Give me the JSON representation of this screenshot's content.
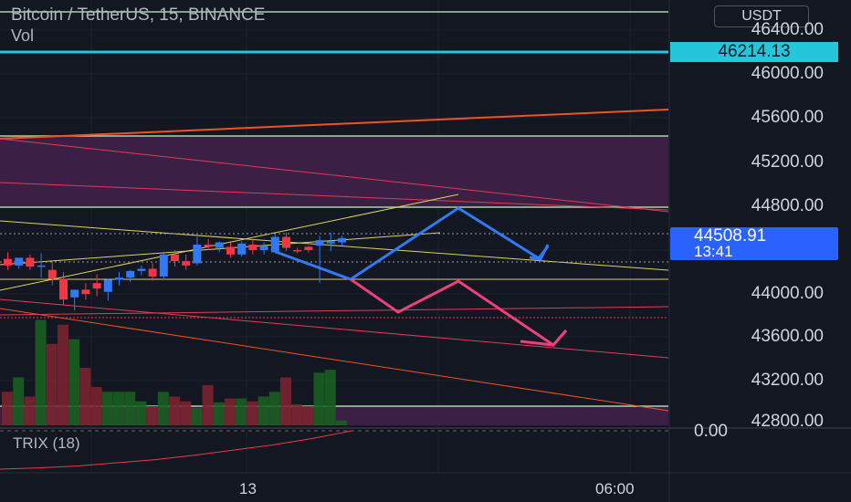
{
  "header": {
    "title": "Bitcoin / TetherUS, 15, BINANCE",
    "volume_label": "Vol"
  },
  "price_axis": {
    "currency": "USDT",
    "labels": [
      "46400.00",
      "46000.00",
      "45600.00",
      "45200.00",
      "44800.00",
      "44000.00",
      "43600.00",
      "43200.00",
      "42800.00"
    ],
    "highlighted_level": "46214.13",
    "last_price": "44508.91",
    "countdown": "13:41"
  },
  "indicator": {
    "label": "TRIX (18)",
    "zero_label": "0.00"
  },
  "time_axis": {
    "labels": [
      "13",
      "06:00"
    ]
  },
  "colors": {
    "background": "#131722",
    "up": "#3179f5",
    "down": "#f23645",
    "highlight_level": "#26c6da",
    "zone": "#3b1f45",
    "support_line": "#a5d6a7"
  },
  "chart_data": {
    "type": "candlestick",
    "symbol": "BTC/USDT",
    "interval": "15",
    "exchange": "BINANCE",
    "ylim": [
      42800,
      46400
    ],
    "candles": [
      {
        "o": 44320,
        "h": 44380,
        "c": 44260,
        "l": 44220
      },
      {
        "o": 44260,
        "h": 44320,
        "c": 44330,
        "l": 44230
      },
      {
        "o": 44330,
        "h": 44360,
        "c": 44250,
        "l": 44220
      },
      {
        "o": 44250,
        "h": 44370,
        "c": 44260,
        "l": 44150
      },
      {
        "o": 44220,
        "h": 44290,
        "c": 44140,
        "l": 44080
      },
      {
        "o": 44140,
        "h": 44200,
        "c": 43950,
        "l": 43900
      },
      {
        "o": 43970,
        "h": 44020,
        "c": 44040,
        "l": 43850
      },
      {
        "o": 44040,
        "h": 44100,
        "c": 44000,
        "l": 43950
      },
      {
        "o": 44100,
        "h": 44180,
        "c": 44050,
        "l": 43980
      },
      {
        "o": 44020,
        "h": 44140,
        "c": 44130,
        "l": 43940
      },
      {
        "o": 44130,
        "h": 44200,
        "c": 44150,
        "l": 44080
      },
      {
        "o": 44150,
        "h": 44220,
        "c": 44210,
        "l": 44110
      },
      {
        "o": 44210,
        "h": 44260,
        "c": 44230,
        "l": 44170
      },
      {
        "o": 44230,
        "h": 44280,
        "c": 44160,
        "l": 44120
      },
      {
        "o": 44160,
        "h": 44370,
        "c": 44360,
        "l": 44130
      },
      {
        "o": 44360,
        "h": 44400,
        "c": 44300,
        "l": 44250
      },
      {
        "o": 44300,
        "h": 44360,
        "c": 44260,
        "l": 44220
      },
      {
        "o": 44280,
        "h": 44520,
        "c": 44450,
        "l": 44260
      },
      {
        "o": 44450,
        "h": 44500,
        "c": 44430,
        "l": 44400
      },
      {
        "o": 44420,
        "h": 44480,
        "c": 44470,
        "l": 44380
      },
      {
        "o": 44430,
        "h": 44470,
        "c": 44360,
        "l": 44330
      },
      {
        "o": 44360,
        "h": 44480,
        "c": 44460,
        "l": 44340
      },
      {
        "o": 44450,
        "h": 44500,
        "c": 44400,
        "l": 44360
      },
      {
        "o": 44400,
        "h": 44470,
        "c": 44440,
        "l": 44360
      },
      {
        "o": 44380,
        "h": 44540,
        "c": 44520,
        "l": 44370
      },
      {
        "o": 44520,
        "h": 44560,
        "c": 44420,
        "l": 44390
      },
      {
        "o": 44400,
        "h": 44420,
        "c": 44390,
        "l": 44370
      },
      {
        "o": 44430,
        "h": 44440,
        "c": 44400,
        "l": 44380
      },
      {
        "o": 44440,
        "h": 44530,
        "c": 44490,
        "l": 44100
      },
      {
        "o": 44460,
        "h": 44560,
        "c": 44480,
        "l": 44390
      },
      {
        "o": 44470,
        "h": 44530,
        "c": 44509,
        "l": 44440
      }
    ],
    "volume": [
      35,
      50,
      30,
      110,
      85,
      105,
      90,
      60,
      40,
      35,
      35,
      35,
      25,
      20,
      35,
      30,
      25,
      18,
      42,
      24,
      28,
      28,
      25,
      30,
      35,
      50,
      22,
      20,
      55,
      58,
      5
    ],
    "horizontal_levels": [
      46670,
      46214.13,
      45440,
      44820,
      44180,
      43780,
      42940
    ],
    "zones": [
      [
        44820,
        45440
      ],
      [
        42800,
        42940
      ]
    ],
    "trix_series": [
      -0.6,
      -0.58,
      -0.55,
      -0.5,
      -0.45,
      -0.38,
      -0.3,
      -0.22,
      -0.12,
      0.0
    ]
  }
}
